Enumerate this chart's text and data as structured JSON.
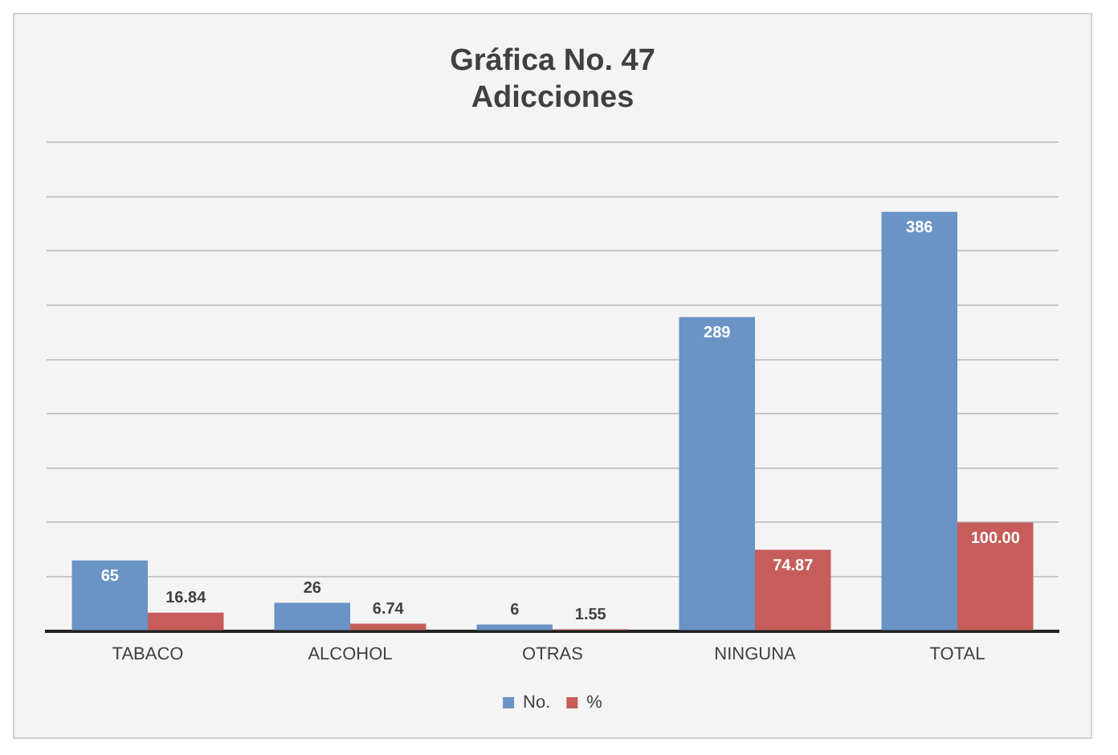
{
  "chart_data": {
    "type": "bar",
    "title": [
      "Gráfica No. 47",
      "Adicciones"
    ],
    "categories": [
      "TABACO",
      "ALCOHOL",
      "OTRAS",
      "NINGUNA",
      "TOTAL"
    ],
    "series": [
      {
        "name": "No.",
        "color": "#6a93c6",
        "values": [
          65,
          26,
          6,
          289,
          386
        ],
        "value_labels": [
          "65",
          "26",
          "6",
          "289",
          "386"
        ]
      },
      {
        "name": "%",
        "color": "#c65d5b",
        "values": [
          16.84,
          6.74,
          1.55,
          74.87,
          100.0
        ],
        "value_labels": [
          "16.84",
          "6.74",
          "1.55",
          "74.87",
          "100.00"
        ]
      }
    ],
    "ylim": [
      0,
      450
    ],
    "yticks": [
      {
        "value": 0,
        "label": null
      },
      {
        "value": 50,
        "label": null
      },
      {
        "value": 100,
        "label": null
      },
      {
        "value": 150,
        "label": null
      },
      {
        "value": 200,
        "label": null
      },
      {
        "value": 250,
        "label": null
      },
      {
        "value": 300,
        "label": null
      },
      {
        "value": 350,
        "label": null
      },
      {
        "value": 400,
        "label": null
      },
      {
        "value": 450,
        "label": null
      }
    ],
    "grid": "y",
    "legend": "bottom",
    "tick_labels": "x"
  }
}
